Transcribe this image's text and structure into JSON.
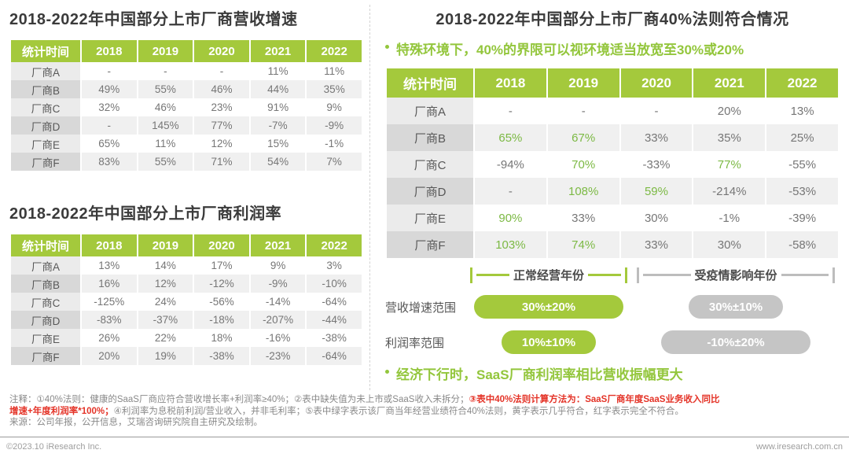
{
  "colors": {
    "accent_green": "#a4c93c",
    "green_value_text": "#7cb944",
    "gray_pill": "#c5c5c5",
    "red_note": "#e43327"
  },
  "left_top": {
    "title": "2018-2022年中国部分上市厂商营收增速",
    "columns": [
      "统计时间",
      "2018",
      "2019",
      "2020",
      "2021",
      "2022"
    ],
    "rows": [
      {
        "label": "厂商A",
        "cells": [
          "-",
          "-",
          "-",
          "11%",
          "11%"
        ]
      },
      {
        "label": "厂商B",
        "cells": [
          "49%",
          "55%",
          "46%",
          "44%",
          "35%"
        ]
      },
      {
        "label": "厂商C",
        "cells": [
          "32%",
          "46%",
          "23%",
          "91%",
          "9%"
        ]
      },
      {
        "label": "厂商D",
        "cells": [
          "-",
          "145%",
          "77%",
          "-7%",
          "-9%"
        ]
      },
      {
        "label": "厂商E",
        "cells": [
          "65%",
          "11%",
          "12%",
          "15%",
          "-1%"
        ]
      },
      {
        "label": "厂商F",
        "cells": [
          "83%",
          "55%",
          "71%",
          "54%",
          "7%"
        ]
      }
    ]
  },
  "left_bottom": {
    "title": "2018-2022年中国部分上市厂商利润率",
    "columns": [
      "统计时间",
      "2018",
      "2019",
      "2020",
      "2021",
      "2022"
    ],
    "rows": [
      {
        "label": "厂商A",
        "cells": [
          "13%",
          "14%",
          "17%",
          "9%",
          "3%"
        ]
      },
      {
        "label": "厂商B",
        "cells": [
          "16%",
          "12%",
          "-12%",
          "-9%",
          "-10%"
        ]
      },
      {
        "label": "厂商C",
        "cells": [
          "-125%",
          "24%",
          "-56%",
          "-14%",
          "-64%"
        ]
      },
      {
        "label": "厂商D",
        "cells": [
          "-83%",
          "-37%",
          "-18%",
          "-207%",
          "-44%"
        ]
      },
      {
        "label": "厂商E",
        "cells": [
          "26%",
          "22%",
          "18%",
          "-16%",
          "-38%"
        ]
      },
      {
        "label": "厂商F",
        "cells": [
          "20%",
          "19%",
          "-38%",
          "-23%",
          "-64%"
        ]
      }
    ]
  },
  "right": {
    "title": "2018-2022年中国部分上市厂商40%法则符合情况",
    "note_bullet": "特殊环境下，40%的界限可以视环境适当放宽至30%或20%",
    "columns": [
      "统计时间",
      "2018",
      "2019",
      "2020",
      "2021",
      "2022"
    ],
    "rows": [
      {
        "label": "厂商A",
        "cells": [
          "-",
          "-",
          "-",
          "20%",
          "13%"
        ]
      },
      {
        "label": "厂商B",
        "cells": [
          {
            "t": "65%",
            "green": true
          },
          {
            "t": "67%",
            "green": true
          },
          "33%",
          "35%",
          "25%"
        ]
      },
      {
        "label": "厂商C",
        "cells": [
          "-94%",
          {
            "t": "70%",
            "green": true
          },
          "-33%",
          {
            "t": "77%",
            "green": true
          },
          "-55%"
        ]
      },
      {
        "label": "厂商D",
        "cells": [
          "-",
          {
            "t": "108%",
            "green": true
          },
          {
            "t": "59%",
            "green": true
          },
          "-214%",
          "-53%"
        ]
      },
      {
        "label": "厂商E",
        "cells": [
          {
            "t": "90%",
            "green": true
          },
          "33%",
          "30%",
          "-1%",
          "-39%"
        ]
      },
      {
        "label": "厂商F",
        "cells": [
          {
            "t": "103%",
            "green": true
          },
          {
            "t": "74%",
            "green": true
          },
          "33%",
          "30%",
          "-58%"
        ]
      }
    ],
    "summary_bullet": "经济下行时，SaaS厂商利润率相比营收振幅更大"
  },
  "legend": {
    "normal_label": "正常经营年份",
    "covid_label": "受疫情影响年份",
    "rows": [
      {
        "label": "营收增速范围",
        "normal": "30%±20%",
        "covid": "30%±10%"
      },
      {
        "label": "利润率范围",
        "normal": "10%±10%",
        "covid": "-10%±20%"
      }
    ]
  },
  "notes": {
    "line1_gray": "注释：①40%法则：健康的SaaS厂商应符合营收增长率+利润率≥40%；②表中缺失值为未上市或SaaS收入未拆分；",
    "line1_red": "③表中40%法则计算方法为：SaaS厂商年度SaaS业务收入同比",
    "line2_red": "增速+年度利润率*100%；",
    "line2_gray": "④利润率为息税前利润/营业收入，并非毛利率；⑤表中绿字表示该厂商当年经营业绩符合40%法则，黄字表示几乎符合，红字表示完全不符合。",
    "source": "来源：公司年报，公开信息，艾瑞咨询研究院自主研究及绘制。"
  },
  "footer": {
    "left": "©2023.10 iResearch Inc.",
    "right": "www.iresearch.com.cn"
  }
}
